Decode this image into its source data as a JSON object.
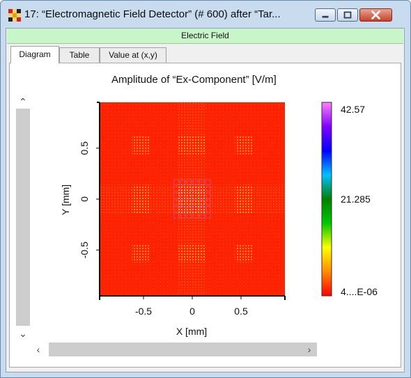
{
  "window": {
    "title": "17: “Electromagnetic Field Detector” (# 600) after “Tar...",
    "icon": "checkerboard-icon"
  },
  "section": {
    "header": "Electric Field"
  },
  "tabs": [
    {
      "label": "Diagram",
      "active": true
    },
    {
      "label": "Table",
      "active": false
    },
    {
      "label": "Value at (x,y)",
      "active": false
    }
  ],
  "chart_data": {
    "type": "heatmap",
    "title": "Amplitude of “Ex-Component”  [V/m]",
    "xlabel": "X [mm]",
    "ylabel": "Y [mm]",
    "x_ticks": [
      "-0.5",
      "0",
      "0.5"
    ],
    "x_tick_values": [
      -0.5,
      0,
      0.5
    ],
    "y_ticks": [
      "0.5",
      "0",
      "-0.5"
    ],
    "y_tick_values": [
      0.5,
      0,
      -0.5
    ],
    "xlim": [
      -0.95,
      0.95
    ],
    "ylim": [
      -0.95,
      0.95
    ],
    "colorbar": {
      "labels": [
        "42.57",
        "21.285",
        "4....E-06"
      ],
      "values": [
        42.57,
        21.285,
        4e-06
      ],
      "colors": [
        "#ff0000",
        "#ff8c00",
        "#ffff00",
        "#00c800",
        "#008000",
        "#00c0ff",
        "#0000ff",
        "#8000ff",
        "#ff80ff"
      ]
    },
    "background_color": "#ff2200",
    "hotspot_color": "#ffcc33"
  },
  "scrollbars": {
    "up": "⌃",
    "down": "⌄",
    "left": "‹",
    "right": "›"
  }
}
